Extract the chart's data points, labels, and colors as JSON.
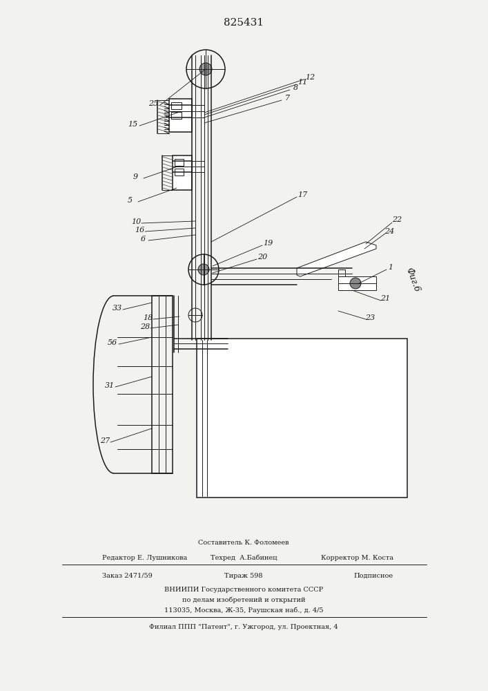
{
  "patent_number": "825431",
  "fig_label": "Фиг.6",
  "background_color": "#f2f2ee",
  "line_color": "#1a1a1a",
  "footer": {
    "line1": "Составитель К. Фоломеев",
    "line2_left": "Редактор Е. Лушникова",
    "line2_mid": "Техред  А.Бабинец",
    "line2_right": "Корректор М. Коста",
    "line3_left": "Заказ 2471/59",
    "line3_mid": "Тираж 598",
    "line3_right": "Подписное",
    "line4": "ВНИИПИ Государственного комитета СССР",
    "line5": "по делам изобретений и открытий",
    "line6": "113035, Москва, Ж-35, Раушская наб., д. 4/5",
    "line7": "Филиал ППП \"Патент\", г. Ужгород, ул. Проектная, 4"
  }
}
